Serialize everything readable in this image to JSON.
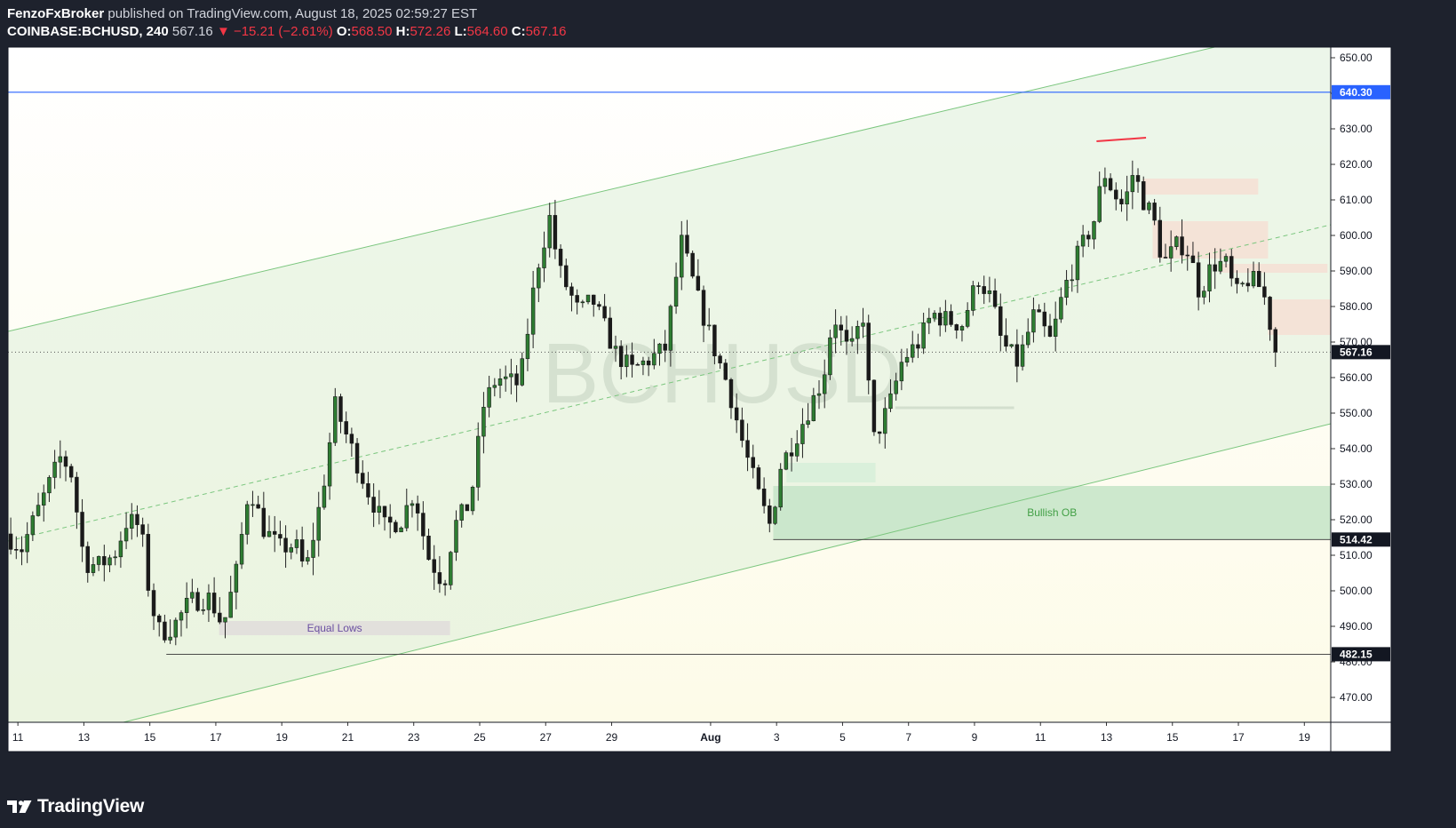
{
  "header": {
    "author": "FenzoFxBroker",
    "published_text": "published on TradingView.com, August 18, 2025 02:59:27 EST",
    "symbol": "COINBASE:BCHUSD, 240",
    "last_price": "567.16",
    "change": "▼ −15.21 (−2.61%)",
    "o_label": "O:",
    "o_value": "568.50",
    "h_label": "H:",
    "h_value": "572.26",
    "l_label": "L:",
    "l_value": "564.60",
    "c_label": "C:",
    "c_value": "567.16"
  },
  "footer": {
    "brand": "TradingView"
  },
  "colors": {
    "up": "#2e7d32",
    "down": "#1a1a1a",
    "accent_blue": "#2962ff",
    "channel": "#66bb6a",
    "bullish_ob": "#c8e6c9",
    "supply": "#f6dfd3",
    "high_line": "#f23645",
    "background": "#fdfbe8"
  },
  "chart_data": {
    "type": "candlestick",
    "watermark": "BCHUSD",
    "y_axis": {
      "min": 463,
      "max": 653,
      "ticks": [
        650,
        640,
        630,
        620,
        610,
        600,
        590,
        580,
        570,
        560,
        550,
        540,
        530,
        520,
        510,
        500,
        490,
        480,
        470
      ]
    },
    "x_axis": {
      "range_days": [
        10.7,
        50.8
      ],
      "ticks": [
        {
          "day": 11,
          "label": "11"
        },
        {
          "day": 13,
          "label": "13"
        },
        {
          "day": 15,
          "label": "15"
        },
        {
          "day": 17,
          "label": "17"
        },
        {
          "day": 19,
          "label": "19"
        },
        {
          "day": 21,
          "label": "21"
        },
        {
          "day": 23,
          "label": "23"
        },
        {
          "day": 25,
          "label": "25"
        },
        {
          "day": 27,
          "label": "27"
        },
        {
          "day": 29,
          "label": "29"
        },
        {
          "day": 32,
          "label": "Aug",
          "bold": true
        },
        {
          "day": 34,
          "label": "3"
        },
        {
          "day": 36,
          "label": "5"
        },
        {
          "day": 38,
          "label": "7"
        },
        {
          "day": 40,
          "label": "9"
        },
        {
          "day": 42,
          "label": "11"
        },
        {
          "day": 44,
          "label": "13"
        },
        {
          "day": 46,
          "label": "15"
        },
        {
          "day": 48,
          "label": "17"
        },
        {
          "day": 50,
          "label": "19"
        }
      ]
    },
    "price_labels": [
      {
        "value": 640.3,
        "text": "640.30",
        "style": "blue"
      },
      {
        "value": 567.16,
        "text": "567.16",
        "style": "dark"
      },
      {
        "value": 514.42,
        "text": "514.42",
        "style": "dark"
      },
      {
        "value": 482.15,
        "text": "482.15",
        "style": "dark"
      }
    ],
    "anchors": [
      [
        10.7,
        516
      ],
      [
        11.2,
        512
      ],
      [
        11.8,
        525
      ],
      [
        12.4,
        538
      ],
      [
        12.7,
        533
      ],
      [
        13.1,
        508
      ],
      [
        13.5,
        507
      ],
      [
        14.0,
        510
      ],
      [
        14.4,
        520
      ],
      [
        14.8,
        518
      ],
      [
        15.1,
        497
      ],
      [
        15.4,
        488
      ],
      [
        15.8,
        490
      ],
      [
        16.3,
        497
      ],
      [
        16.9,
        498
      ],
      [
        17.3,
        490
      ],
      [
        17.7,
        505
      ],
      [
        18.1,
        530
      ],
      [
        18.5,
        518
      ],
      [
        19.0,
        512
      ],
      [
        19.5,
        513
      ],
      [
        19.8,
        505
      ],
      [
        20.3,
        527
      ],
      [
        20.7,
        552
      ],
      [
        21.2,
        540
      ],
      [
        21.7,
        528
      ],
      [
        22.2,
        518
      ],
      [
        22.7,
        520
      ],
      [
        23.1,
        528
      ],
      [
        23.5,
        510
      ],
      [
        24.0,
        502
      ],
      [
        24.3,
        518
      ],
      [
        24.8,
        525
      ],
      [
        25.2,
        552
      ],
      [
        25.6,
        560
      ],
      [
        26.3,
        558
      ],
      [
        26.8,
        590
      ],
      [
        27.2,
        605
      ],
      [
        27.5,
        590
      ],
      [
        28.1,
        578
      ],
      [
        28.5,
        582
      ],
      [
        29.2,
        567
      ],
      [
        29.7,
        562
      ],
      [
        30.2,
        565
      ],
      [
        30.7,
        568
      ],
      [
        31.2,
        598
      ],
      [
        31.7,
        582
      ],
      [
        32.2,
        568
      ],
      [
        32.6,
        558
      ],
      [
        33.1,
        540
      ],
      [
        33.6,
        525
      ],
      [
        33.9,
        518
      ],
      [
        34.2,
        535
      ],
      [
        34.6,
        542
      ],
      [
        35.1,
        552
      ],
      [
        35.5,
        560
      ],
      [
        35.8,
        578
      ],
      [
        36.3,
        566
      ],
      [
        36.7,
        578
      ],
      [
        37.0,
        542
      ],
      [
        37.5,
        552
      ],
      [
        37.9,
        565
      ],
      [
        38.4,
        570
      ],
      [
        38.8,
        578
      ],
      [
        39.3,
        576
      ],
      [
        39.7,
        575
      ],
      [
        40.2,
        588
      ],
      [
        40.6,
        582
      ],
      [
        40.9,
        570
      ],
      [
        41.4,
        564
      ],
      [
        41.9,
        578
      ],
      [
        42.4,
        570
      ],
      [
        42.8,
        585
      ],
      [
        43.2,
        594
      ],
      [
        43.7,
        604
      ],
      [
        44.0,
        618
      ],
      [
        44.3,
        612
      ],
      [
        44.6,
        608
      ],
      [
        44.9,
        618
      ],
      [
        45.2,
        610
      ],
      [
        45.5,
        605
      ],
      [
        45.8,
        592
      ],
      [
        46.3,
        598
      ],
      [
        46.6,
        595
      ],
      [
        46.9,
        584
      ],
      [
        47.3,
        592
      ],
      [
        47.7,
        592
      ],
      [
        48.0,
        583
      ],
      [
        48.4,
        588
      ],
      [
        48.8,
        585
      ],
      [
        49.0,
        578
      ],
      [
        49.15,
        568
      ],
      [
        49.2,
        567.16
      ]
    ],
    "candle_interval_days": 0.1667,
    "lines": [
      {
        "name": "channel-upper",
        "from": [
          10.7,
          573
        ],
        "to": [
          48.2,
          655
        ],
        "style": "solid"
      },
      {
        "name": "channel-mid",
        "from": [
          10.7,
          514
        ],
        "to": [
          50.8,
          603
        ],
        "style": "dashed"
      },
      {
        "name": "channel-lower",
        "from": [
          14.2,
          463
        ],
        "to": [
          50.8,
          547
        ],
        "style": "solid"
      },
      {
        "name": "resistance-640",
        "from": [
          10.7,
          640.3
        ],
        "to": [
          50.8,
          640.3
        ],
        "style": "blue"
      },
      {
        "name": "last-price-line",
        "from": [
          10.7,
          567.16
        ],
        "to": [
          50.8,
          567.16
        ],
        "style": "dotted"
      },
      {
        "name": "low-482",
        "from": [
          15.5,
          482.15
        ],
        "to": [
          50.8,
          482.15
        ],
        "style": "thin"
      },
      {
        "name": "low-514",
        "from": [
          33.9,
          514.42
        ],
        "to": [
          50.8,
          514.42
        ],
        "style": "thin"
      },
      {
        "name": "swing-high",
        "from": [
          43.7,
          626.5
        ],
        "to": [
          45.2,
          627.5
        ],
        "style": "red"
      }
    ],
    "zones": [
      {
        "name": "bullish-ob",
        "label": "Bullish OB",
        "x": [
          33.9,
          50.8
        ],
        "y": [
          514.42,
          529.5
        ],
        "color": "green"
      },
      {
        "name": "equal-lows",
        "label": "Equal Lows",
        "x": [
          17.1,
          24.1
        ],
        "y": [
          487.5,
          491.5
        ],
        "color": "gray"
      },
      {
        "name": "green-box",
        "label": "",
        "x": [
          34.3,
          37.0
        ],
        "y": [
          530.5,
          536
        ],
        "color": "lightgreen"
      },
      {
        "name": "supply-1",
        "label": "",
        "x": [
          45.1,
          48.6
        ],
        "y": [
          611.5,
          616
        ],
        "color": "pink"
      },
      {
        "name": "supply-2",
        "label": "",
        "x": [
          45.4,
          48.9
        ],
        "y": [
          593.5,
          604
        ],
        "color": "pink"
      },
      {
        "name": "supply-3",
        "label": "",
        "x": [
          47.5,
          50.7
        ],
        "y": [
          589.5,
          592
        ],
        "color": "pink"
      },
      {
        "name": "supply-4",
        "label": "",
        "x": [
          48.9,
          50.8
        ],
        "y": [
          572,
          582
        ],
        "color": "pink"
      }
    ]
  }
}
